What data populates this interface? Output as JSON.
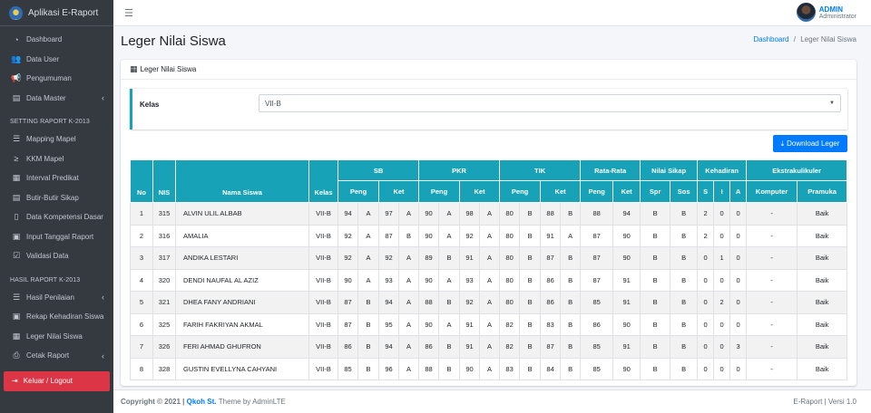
{
  "app": {
    "title": "Aplikasi E-Raport"
  },
  "sidebar": {
    "items_main": [
      {
        "label": "Dashboard",
        "icon": "gauge-icon",
        "glyph": "◔"
      },
      {
        "label": "Data User",
        "icon": "users-icon",
        "glyph": "👥"
      },
      {
        "label": "Pengumuman",
        "icon": "bullhorn-icon",
        "glyph": "📢"
      },
      {
        "label": "Data Master",
        "icon": "database-icon",
        "glyph": "▤"
      }
    ],
    "header_setting": "SETTING RAPORT K-2013",
    "items_setting": [
      {
        "label": "Mapping Mapel",
        "icon": "list-icon",
        "glyph": "☰"
      },
      {
        "label": "KKM Mapel",
        "icon": "sort-icon",
        "glyph": "≥"
      },
      {
        "label": "Interval Predikat",
        "icon": "square-list-icon",
        "glyph": "▦"
      },
      {
        "label": "Butir-Butir Sikap",
        "icon": "tasks-icon",
        "glyph": "▤"
      },
      {
        "label": "Data Kompetensi Dasar",
        "icon": "file-icon",
        "glyph": "▯"
      },
      {
        "label": "Input Tanggal Raport",
        "icon": "calendar-icon",
        "glyph": "▣"
      },
      {
        "label": "Validasi Data",
        "icon": "check-square-icon",
        "glyph": "☑"
      }
    ],
    "header_hasil": "HASIL RAPORT K-2013",
    "items_hasil": [
      {
        "label": "Hasil Penilaian",
        "icon": "list-icon",
        "glyph": "☰"
      },
      {
        "label": "Rekap Kehadiran Siswa",
        "icon": "calendar-check-icon",
        "glyph": "▣"
      },
      {
        "label": "Leger Nilai Siswa",
        "icon": "table-icon",
        "glyph": "▦"
      },
      {
        "label": "Cetak Raport",
        "icon": "print-icon",
        "glyph": "⎙"
      }
    ],
    "logout": "Keluar / Logout"
  },
  "topbar": {
    "user_name": "ADMIN",
    "user_role": "Administrator"
  },
  "page": {
    "title": "Leger Nilai Siswa",
    "breadcrumb_home": "Dashboard",
    "breadcrumb_sep": "/",
    "breadcrumb_current": "Leger Nilai Siswa",
    "card_title": "Leger Nilai Siswa",
    "kelas_label": "Kelas",
    "kelas_value": "VII-B",
    "download_label": "Download Leger"
  },
  "table": {
    "group_headers": [
      "No",
      "NIS",
      "Nama Siswa",
      "Kelas",
      "SB",
      "PKR",
      "TIK",
      "Rata-Rata",
      "Nilai Sikap",
      "Kehadiran",
      "Ekstrakulikuler"
    ],
    "sub_headers": [
      "Peng",
      "Ket",
      "Peng",
      "Ket",
      "Peng",
      "Ket",
      "Peng",
      "Ket",
      "Spr",
      "Sos",
      "S",
      "I",
      "A",
      "Komputer",
      "Pramuka"
    ],
    "rows": [
      [
        "1",
        "315",
        "ALVIN ULIL ALBAB",
        "VII-B",
        "94",
        "A",
        "97",
        "A",
        "90",
        "A",
        "98",
        "A",
        "80",
        "B",
        "88",
        "B",
        "88",
        "94",
        "B",
        "B",
        "2",
        "0",
        "0",
        "-",
        "Baik"
      ],
      [
        "2",
        "316",
        "AMALIA",
        "VII-B",
        "92",
        "A",
        "87",
        "B",
        "90",
        "A",
        "92",
        "A",
        "80",
        "B",
        "91",
        "A",
        "87",
        "90",
        "B",
        "B",
        "2",
        "0",
        "0",
        "-",
        "Baik"
      ],
      [
        "3",
        "317",
        "ANDIKA LESTARI",
        "VII-B",
        "92",
        "A",
        "92",
        "A",
        "89",
        "B",
        "91",
        "A",
        "80",
        "B",
        "87",
        "B",
        "87",
        "90",
        "B",
        "B",
        "0",
        "1",
        "0",
        "-",
        "Baik"
      ],
      [
        "4",
        "320",
        "DENDI NAUFAL AL AZIZ",
        "VII-B",
        "90",
        "A",
        "93",
        "A",
        "90",
        "A",
        "93",
        "A",
        "80",
        "B",
        "86",
        "B",
        "87",
        "91",
        "B",
        "B",
        "0",
        "0",
        "0",
        "-",
        "Baik"
      ],
      [
        "5",
        "321",
        "DHEA FANY ANDRIANI",
        "VII-B",
        "87",
        "B",
        "94",
        "A",
        "88",
        "B",
        "92",
        "A",
        "80",
        "B",
        "86",
        "B",
        "85",
        "91",
        "B",
        "B",
        "0",
        "2",
        "0",
        "-",
        "Baik"
      ],
      [
        "6",
        "325",
        "FARIH FAKRIYAN AKMAL",
        "VII-B",
        "87",
        "B",
        "95",
        "A",
        "90",
        "A",
        "91",
        "A",
        "82",
        "B",
        "83",
        "B",
        "86",
        "90",
        "B",
        "B",
        "0",
        "0",
        "0",
        "-",
        "Baik"
      ],
      [
        "7",
        "326",
        "FERI AHMAD GHUFRON",
        "VII-B",
        "86",
        "B",
        "94",
        "A",
        "86",
        "B",
        "91",
        "A",
        "82",
        "B",
        "87",
        "B",
        "85",
        "91",
        "B",
        "B",
        "0",
        "0",
        "3",
        "-",
        "Baik"
      ],
      [
        "8",
        "328",
        "GUSTIN EVELLYNA CAHYANI",
        "VII-B",
        "85",
        "B",
        "96",
        "A",
        "88",
        "B",
        "90",
        "A",
        "83",
        "B",
        "84",
        "B",
        "85",
        "90",
        "B",
        "B",
        "0",
        "0",
        "0",
        "-",
        "Baik"
      ]
    ]
  },
  "footer": {
    "copyright": "Copyright © 2021 |",
    "brand": "Qkoh St.",
    "theme": "Theme by AdminLTE",
    "version": "E-Raport | Versi 1.0"
  },
  "colors": {
    "accent": "#17a2b8",
    "primary": "#007bff",
    "sidebar": "#343a40",
    "danger": "#dc3545"
  }
}
